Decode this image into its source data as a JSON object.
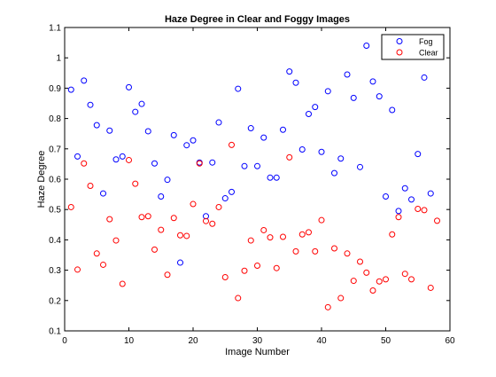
{
  "chart_data": {
    "type": "scatter",
    "title": "Haze Degree in Clear and Foggy Images",
    "xlabel": "Image Number",
    "ylabel": "Haze Degree",
    "xlim": [
      0,
      60
    ],
    "ylim": [
      0.1,
      1.1
    ],
    "xticks": [
      "0",
      "10",
      "20",
      "30",
      "40",
      "50",
      "60"
    ],
    "yticks": [
      "0.1",
      "0.2",
      "0.3",
      "0.4",
      "0.5",
      "0.6",
      "0.7",
      "0.8",
      "0.9",
      "1",
      "1.1"
    ],
    "grid": false,
    "legend_position": "top-right",
    "marker": "circle-open",
    "series": [
      {
        "name": "Fog",
        "color": "#0000ff",
        "points": [
          [
            1,
            0.895
          ],
          [
            2,
            0.675
          ],
          [
            3,
            0.925
          ],
          [
            4,
            0.845
          ],
          [
            5,
            0.778
          ],
          [
            6,
            0.553
          ],
          [
            7,
            0.76
          ],
          [
            8,
            0.665
          ],
          [
            9,
            0.675
          ],
          [
            10,
            0.903
          ],
          [
            11,
            0.822
          ],
          [
            12,
            0.848
          ],
          [
            13,
            0.758
          ],
          [
            14,
            0.652
          ],
          [
            15,
            0.543
          ],
          [
            16,
            0.598
          ],
          [
            17,
            0.745
          ],
          [
            18,
            0.325
          ],
          [
            19,
            0.712
          ],
          [
            20,
            0.728
          ],
          [
            21,
            0.655
          ],
          [
            22,
            0.478
          ],
          [
            23,
            0.655
          ],
          [
            24,
            0.787
          ],
          [
            25,
            0.537
          ],
          [
            26,
            0.558
          ],
          [
            27,
            0.898
          ],
          [
            28,
            0.643
          ],
          [
            29,
            0.768
          ],
          [
            30,
            0.643
          ],
          [
            31,
            0.737
          ],
          [
            32,
            0.605
          ],
          [
            33,
            0.605
          ],
          [
            34,
            0.763
          ],
          [
            35,
            0.955
          ],
          [
            36,
            0.918
          ],
          [
            37,
            0.698
          ],
          [
            38,
            0.815
          ],
          [
            39,
            0.838
          ],
          [
            40,
            0.69
          ],
          [
            41,
            0.89
          ],
          [
            42,
            0.62
          ],
          [
            43,
            0.668
          ],
          [
            44,
            0.945
          ],
          [
            45,
            0.868
          ],
          [
            46,
            0.64
          ],
          [
            47,
            1.04
          ],
          [
            48,
            0.922
          ],
          [
            49,
            0.873
          ],
          [
            50,
            0.543
          ],
          [
            51,
            0.828
          ],
          [
            52,
            0.495
          ],
          [
            53,
            0.57
          ],
          [
            54,
            0.533
          ],
          [
            55,
            0.683
          ],
          [
            56,
            0.935
          ],
          [
            57,
            0.553
          ]
        ]
      },
      {
        "name": "Clear",
        "color": "#ff0000",
        "points": [
          [
            1,
            0.508
          ],
          [
            2,
            0.302
          ],
          [
            3,
            0.652
          ],
          [
            4,
            0.578
          ],
          [
            5,
            0.355
          ],
          [
            6,
            0.318
          ],
          [
            7,
            0.468
          ],
          [
            8,
            0.398
          ],
          [
            9,
            0.255
          ],
          [
            10,
            0.663
          ],
          [
            11,
            0.585
          ],
          [
            12,
            0.475
          ],
          [
            13,
            0.478
          ],
          [
            14,
            0.368
          ],
          [
            15,
            0.433
          ],
          [
            16,
            0.285
          ],
          [
            17,
            0.472
          ],
          [
            18,
            0.415
          ],
          [
            19,
            0.413
          ],
          [
            20,
            0.518
          ],
          [
            21,
            0.652
          ],
          [
            22,
            0.462
          ],
          [
            23,
            0.453
          ],
          [
            24,
            0.508
          ],
          [
            25,
            0.277
          ],
          [
            26,
            0.713
          ],
          [
            27,
            0.208
          ],
          [
            28,
            0.298
          ],
          [
            29,
            0.398
          ],
          [
            30,
            0.315
          ],
          [
            31,
            0.432
          ],
          [
            32,
            0.408
          ],
          [
            33,
            0.307
          ],
          [
            34,
            0.41
          ],
          [
            35,
            0.672
          ],
          [
            36,
            0.362
          ],
          [
            37,
            0.418
          ],
          [
            38,
            0.425
          ],
          [
            39,
            0.362
          ],
          [
            40,
            0.465
          ],
          [
            41,
            0.178
          ],
          [
            42,
            0.372
          ],
          [
            43,
            0.208
          ],
          [
            44,
            0.355
          ],
          [
            45,
            0.265
          ],
          [
            46,
            0.328
          ],
          [
            47,
            0.292
          ],
          [
            48,
            0.233
          ],
          [
            49,
            0.263
          ],
          [
            50,
            0.27
          ],
          [
            51,
            0.418
          ],
          [
            52,
            0.475
          ],
          [
            53,
            0.288
          ],
          [
            54,
            0.27
          ],
          [
            55,
            0.502
          ],
          [
            56,
            0.498
          ],
          [
            57,
            0.242
          ],
          [
            58,
            0.463
          ]
        ]
      }
    ]
  }
}
